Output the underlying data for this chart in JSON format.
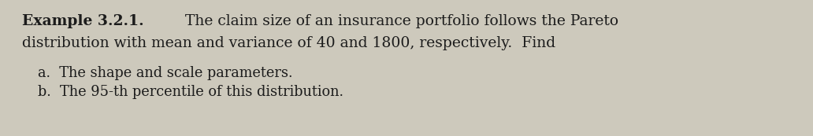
{
  "background_color": "#cdc9bc",
  "text_color": "#1c1c1c",
  "title_bold": "Example 3.2.1.",
  "title_normal": "    The claim size of an insurance portfolio follows the Pareto",
  "line2": "distribution with mean and variance of 40 and 1800, respectively.  Find",
  "item_a": "a.  The shape and scale parameters.",
  "item_b": "b.  The 95-th percentile of this distribution.",
  "font_size_main": 13.5,
  "font_size_items": 12.8,
  "fig_width": 10.32,
  "fig_height": 1.73,
  "dpi": 100
}
